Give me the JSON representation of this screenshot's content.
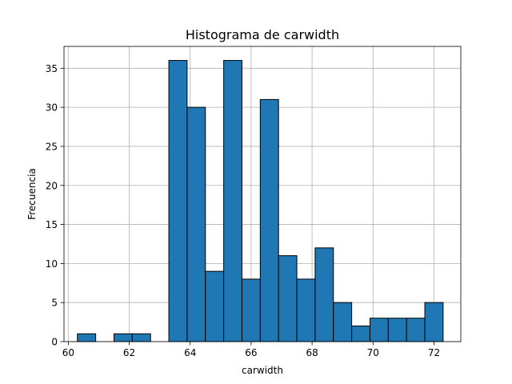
{
  "chart_data": {
    "type": "bar",
    "title": "Histograma de carwidth",
    "xlabel": "carwidth",
    "ylabel": "Frecuencia",
    "xlim": [
      59.86,
      72.88
    ],
    "ylim": [
      0,
      37.8
    ],
    "grid": true,
    "x_ticks": [
      60,
      62,
      64,
      66,
      68,
      70,
      72
    ],
    "y_ticks": [
      0,
      5,
      10,
      15,
      20,
      25,
      30,
      35
    ],
    "bin_start": 60.3,
    "bin_width": 0.6,
    "values": [
      1,
      0,
      1,
      1,
      0,
      36,
      30,
      9,
      36,
      8,
      31,
      11,
      8,
      12,
      5,
      2,
      3,
      3,
      3,
      5
    ],
    "bar_color": "#1f77b4",
    "edge_color": "#000000",
    "grid_color": "#b0b0b0"
  }
}
